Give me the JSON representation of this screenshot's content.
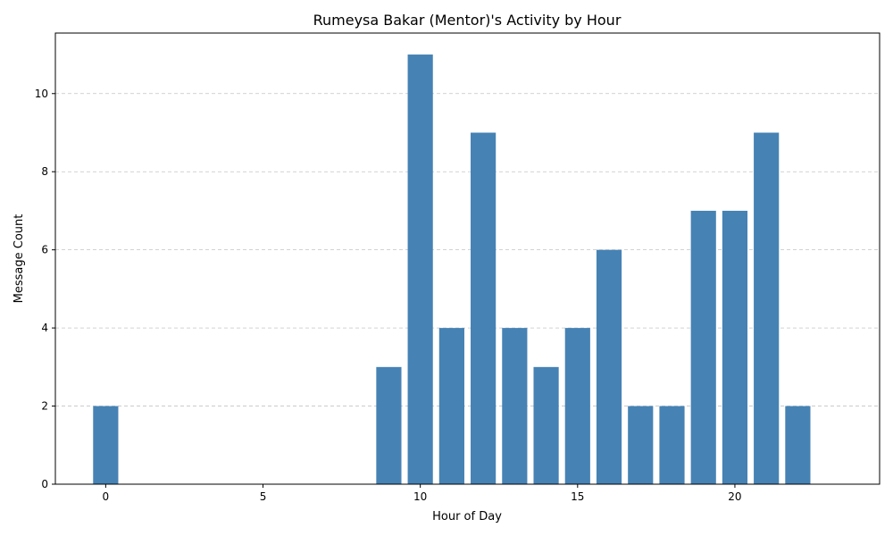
{
  "chart_data": {
    "type": "bar",
    "title": "Rumeysa Bakar (Mentor)'s Activity by Hour",
    "xlabel": "Hour of Day",
    "ylabel": "Message Count",
    "x": [
      0,
      9,
      10,
      11,
      12,
      13,
      14,
      15,
      16,
      17,
      18,
      19,
      20,
      21,
      22
    ],
    "values": [
      2,
      3,
      11,
      4,
      9,
      4,
      3,
      4,
      6,
      2,
      2,
      7,
      7,
      9,
      2
    ],
    "xlim": [
      -1.6,
      24.6
    ],
    "ylim": [
      0,
      11.55
    ],
    "xticks": [
      0,
      5,
      10,
      15,
      20
    ],
    "yticks": [
      0,
      2,
      4,
      6,
      8,
      10
    ],
    "grid": "y-dashed",
    "bar_color": "#4682b4",
    "grid_color": "#c4c4c4"
  }
}
